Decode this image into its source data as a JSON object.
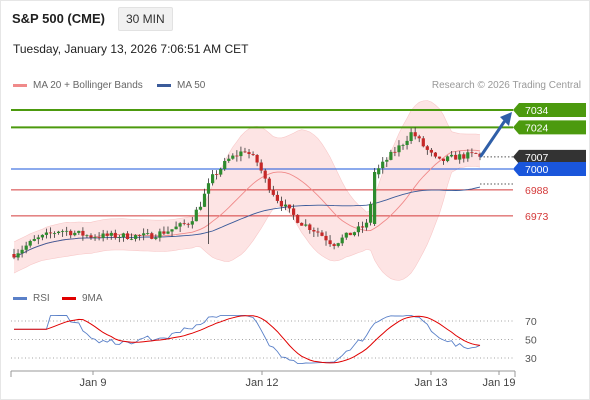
{
  "header": {
    "title": "S&P 500 (CME)",
    "interval": "30 MIN",
    "timestamp": "Tuesday, January 13, 2026 7:06:51 AM CET",
    "credit": "Research © 2026 Trading Central"
  },
  "legend": {
    "ma20": "MA 20 + Bollinger Bands",
    "ma50": "MA 50",
    "rsi": "RSI",
    "ma9": "9MA"
  },
  "colors": {
    "bollinger_fill": "#fde4e4",
    "ma20": "#f08a8a",
    "ma50": "#3b5b9a",
    "bull_candle": "#2e8b2e",
    "bear_candle": "#c62828",
    "resistance": "#4c9a0e",
    "pivot": "#1a56db",
    "support": "#d43a3a",
    "current": "#333333",
    "forecast_arrow": "#2f5fa8",
    "rsi": "#5a80c8",
    "rsi_ma": "#e00000"
  },
  "chart_data": [
    {
      "type": "candlestick",
      "title": "S&P 500 (CME)",
      "interval": "30 MIN",
      "x_ticks": [
        "Jan 9",
        "Jan 12",
        "Jan 13",
        "Jan 19"
      ],
      "current_price": 7007,
      "levels": [
        {
          "label": "7034",
          "value": 7034,
          "kind": "resistance"
        },
        {
          "label": "7024",
          "value": 7024,
          "kind": "resistance"
        },
        {
          "label": "7007",
          "value": 7007,
          "kind": "current"
        },
        {
          "label": "7000",
          "value": 7000,
          "kind": "pivot"
        },
        {
          "label": "6988",
          "value": 6988,
          "kind": "support"
        },
        {
          "label": "6973",
          "value": 6973,
          "kind": "support"
        }
      ],
      "forecast": {
        "from": 7007,
        "to": 7034
      },
      "indicators": [
        "MA 20 + Bollinger Bands",
        "MA 50"
      ]
    },
    {
      "type": "line",
      "series": [
        {
          "name": "RSI"
        },
        {
          "name": "9MA"
        }
      ],
      "y_ticks": [
        70,
        50,
        30
      ],
      "ylim": [
        20,
        80
      ]
    }
  ]
}
